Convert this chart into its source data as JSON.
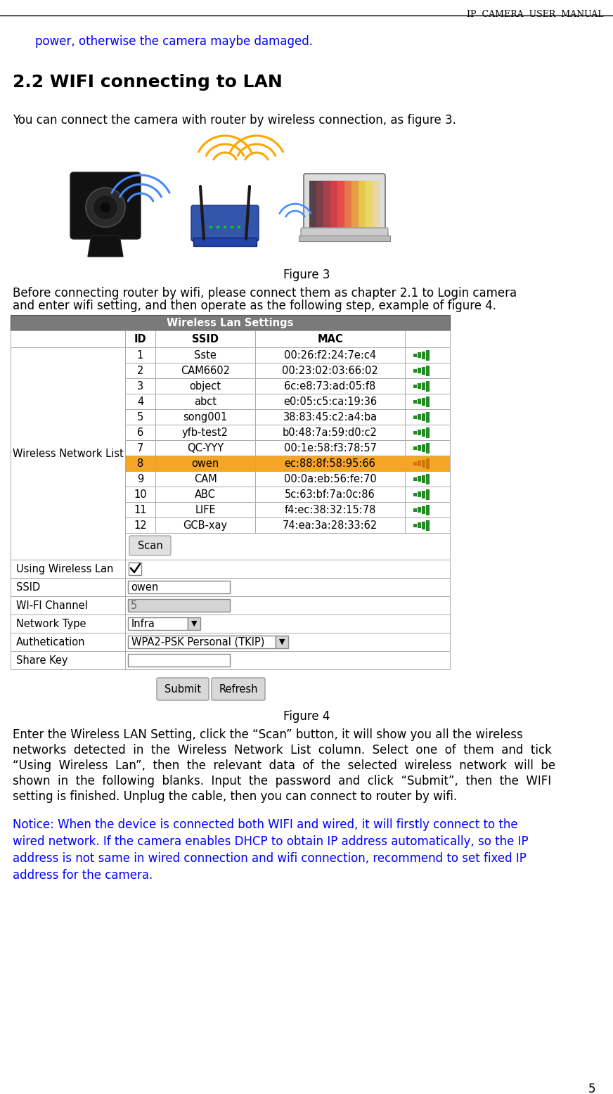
{
  "header_text": "IP  CAMERA  USER  MANUAL",
  "intro_line": "    power, otherwise the camera maybe damaged.",
  "section_title": "2.2 WIFI connecting to LAN",
  "section_intro": "You can connect the camera with router by wireless connection, as figure 3.",
  "figure3_caption": "Figure 3",
  "para1_line1": "Before connecting router by wifi, please connect them as chapter 2.1 to Login camera",
  "para1_line2": "and enter wifi setting, and then operate as the following step, example of figure 4.",
  "table_header": "Wireless Lan Settings",
  "table_rows": [
    [
      "1",
      "Sste",
      "00:26:f2:24:7e:c4"
    ],
    [
      "2",
      "CAM6602",
      "00:23:02:03:66:02"
    ],
    [
      "3",
      "object",
      "6c:e8:73:ad:05:f8"
    ],
    [
      "4",
      "abct",
      "e0:05:c5:ca:19:36"
    ],
    [
      "5",
      "song001",
      "38:83:45:c2:a4:ba"
    ],
    [
      "6",
      "yfb-test2",
      "b0:48:7a:59:d0:c2"
    ],
    [
      "7",
      "QC-YYY",
      "00:1e:58:f3:78:57"
    ],
    [
      "8",
      "owen",
      "ec:88:8f:58:95:66"
    ],
    [
      "9",
      "CAM",
      "00:0a:eb:56:fe:70"
    ],
    [
      "10",
      "ABC",
      "5c:63:bf:7a:0c:86"
    ],
    [
      "11",
      "LIFE",
      "f4:ec:38:32:15:78"
    ],
    [
      "12",
      "GCB-xay",
      "74:ea:3a:28:33:62"
    ]
  ],
  "highlighted_row": 7,
  "highlight_color": "#F5A623",
  "left_label": "Wireless Network List",
  "form_labels": [
    "Using Wireless Lan",
    "SSID",
    "WI-FI Channel",
    "Network Type",
    "Authetication",
    "Share Key"
  ],
  "figure4_caption": "Figure 4",
  "para2_lines": [
    "Enter the Wireless LAN Setting, click the “Scan” button, it will show you all the wireless",
    "networks  detected  in  the  Wireless  Network  List  column.  Select  one  of  them  and  tick",
    "“Using  Wireless  Lan”,  then  the  relevant  data  of  the  selected  wireless  network  will  be",
    "shown  in  the  following  blanks.  Input  the  password  and  click  “Submit”,  then  the  WIFI",
    "setting is finished. Unplug the cable, then you can connect to router by wifi."
  ],
  "notice_lines": [
    "Notice: When the device is connected both WIFI and wired, it will firstly connect to the",
    "wired network. If the camera enables DHCP to obtain IP address automatically, so the IP",
    "address is not same in wired connection and wifi connection, recommend to set fixed IP",
    "address for the camera."
  ],
  "page_number": "5",
  "blue_color": "#0000FF",
  "signal_color": "#228B22",
  "table_header_bg": "#7a7a7a",
  "highlight_signal_color": "#cc7700"
}
